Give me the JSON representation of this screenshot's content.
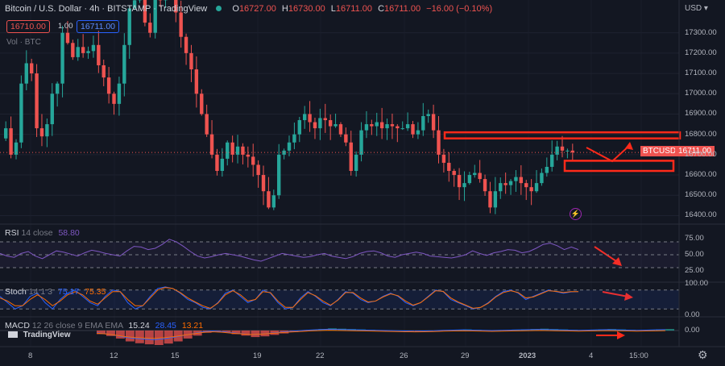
{
  "header": {
    "symbol": "Bitcoin / U.S. Dollar · 4h · BITSTAMP · TradingView",
    "o_label": "O",
    "o_value": "16727.00",
    "h_label": "H",
    "h_value": "16730.00",
    "l_label": "L",
    "l_value": "16711.00",
    "c_label": "C",
    "c_value": "16711.00",
    "change": "−16.00 (−0.10%)",
    "sell_price": "16710.00",
    "spread": "1.00",
    "buy_price": "16711.00",
    "vol_label": "Vol · BTC",
    "currency": "USD"
  },
  "last_price_tag": {
    "symbol": "BTCUSD",
    "price": "16711.00"
  },
  "colors": {
    "up": "#26a69a",
    "down": "#ef5350",
    "annotation": "#ff2a1a",
    "rsi": "#7e57c2",
    "stoch_k": "#2962ff",
    "stoch_d": "#ff6d00"
  },
  "rsi": {
    "label": "RSI",
    "params": "14 close",
    "value": "58.80"
  },
  "stoch": {
    "label": "Stoch",
    "params": "14 1 3",
    "k_value": "75.17",
    "d_value": "75.35"
  },
  "macd": {
    "label": "MACD",
    "params": "12 26 close 9 EMA EMA",
    "v1": "15.24",
    "v2": "28.45",
    "v3": "13.21"
  },
  "watermark": "TradingView",
  "chart_data": {
    "type": "candlestick",
    "title": "Bitcoin / U.S. Dollar · 4h · BITSTAMP",
    "price_axis": {
      "ticks": [
        17300,
        17200,
        17100,
        17000,
        16900,
        16800,
        16700,
        16600,
        16500,
        16400
      ],
      "ylim": [
        16370,
        17390
      ]
    },
    "x_ticks": [
      "8",
      "12",
      "15",
      "19",
      "22",
      "26",
      "29",
      "2023",
      "4",
      "15:00"
    ],
    "rsi_axis": [
      "75.00",
      "50.00",
      "25.00"
    ],
    "stoch_axis": [
      "100.00",
      "0.00"
    ],
    "macd_axis": [
      "0.00"
    ],
    "annotations": {
      "resistance_zone": [
        16780,
        16810
      ],
      "support_zone": [
        16620,
        16670
      ]
    },
    "price_path": [
      16780,
      16830,
      16700,
      16760,
      17050,
      17150,
      17100,
      16830,
      16790,
      16850,
      17000,
      17050,
      17300,
      17250,
      17180,
      17230,
      17200,
      17210,
      17240,
      17140,
      17080,
      17000,
      16950,
      17050,
      17240,
      17420,
      17460,
      17500,
      17350,
      17300,
      17500,
      17460,
      17550,
      17600,
      17400,
      17280,
      17200,
      17120,
      17000,
      16900,
      16800,
      16700,
      16620,
      16680,
      16760,
      16700,
      16740,
      16700,
      16690,
      16650,
      16600,
      16520,
      16440,
      16500,
      16700,
      16720,
      16760,
      16800,
      16870,
      16900,
      16860,
      16830,
      16880,
      16870,
      16840,
      16850,
      16800,
      16760,
      16620,
      16700,
      16820,
      16850,
      16840,
      16860,
      16830,
      16850,
      16840,
      16830,
      16830,
      16850,
      16800,
      16820,
      16890,
      16900,
      16820,
      16700,
      16660,
      16620,
      16600,
      16540,
      16560,
      16600,
      16610,
      16580,
      16520,
      16440,
      16520,
      16560,
      16550,
      16570,
      16590,
      16560,
      16540,
      16520,
      16560,
      16610,
      16640,
      16700,
      16740,
      16720,
      16720,
      16711
    ],
    "rsi_path": [
      52,
      48,
      46,
      52,
      55,
      48,
      44,
      50,
      56,
      54,
      51,
      48,
      53,
      57,
      55,
      52,
      50,
      48,
      56,
      63,
      62,
      58,
      60,
      66,
      74,
      70,
      63,
      55,
      48,
      45,
      47,
      50,
      52,
      50,
      48,
      45,
      42,
      40,
      44,
      48,
      52,
      50,
      48,
      46,
      47,
      50,
      52,
      48,
      46,
      44,
      47,
      52,
      55,
      56,
      53,
      48,
      46,
      50,
      52,
      54,
      52,
      48,
      47,
      46,
      45,
      47,
      50,
      56,
      52,
      49,
      53,
      55,
      58,
      57,
      53,
      55,
      60,
      66,
      68,
      64,
      58,
      62,
      58
    ],
    "stoch_k_path": [
      60,
      40,
      20,
      30,
      60,
      70,
      40,
      20,
      50,
      70,
      80,
      60,
      40,
      30,
      60,
      80,
      75,
      40,
      20,
      30,
      60,
      85,
      90,
      85,
      70,
      50,
      40,
      25,
      20,
      40,
      70,
      80,
      60,
      40,
      50,
      80,
      70,
      40,
      20,
      25,
      55,
      75,
      60,
      40,
      30,
      50,
      75,
      70,
      50,
      40,
      45,
      60,
      70,
      60,
      40,
      30,
      40,
      60,
      80,
      75,
      50,
      40,
      30,
      20,
      25,
      40,
      60,
      75,
      80,
      70,
      50,
      60,
      70,
      80,
      75,
      70,
      74,
      75
    ],
    "stoch_d_path": [
      55,
      45,
      30,
      30,
      50,
      65,
      50,
      30,
      45,
      65,
      75,
      65,
      45,
      35,
      55,
      75,
      75,
      50,
      30,
      30,
      55,
      80,
      88,
      85,
      72,
      55,
      42,
      30,
      22,
      38,
      65,
      78,
      65,
      45,
      50,
      75,
      72,
      45,
      25,
      25,
      50,
      72,
      62,
      45,
      32,
      48,
      72,
      72,
      55,
      42,
      45,
      58,
      68,
      62,
      45,
      32,
      40,
      58,
      78,
      76,
      55,
      42,
      32,
      22,
      25,
      38,
      58,
      72,
      78,
      72,
      55,
      58,
      68,
      78,
      76,
      72,
      75,
      75
    ],
    "macd_hist_path": [
      -10,
      -15,
      -22,
      -30,
      -35,
      -38,
      -40,
      -36,
      -30,
      -22,
      -14,
      -6,
      -2,
      -5,
      -10,
      -14,
      -18,
      -16,
      -12,
      -8,
      -4,
      -1,
      2,
      4,
      6,
      5,
      4,
      3,
      2,
      1,
      0,
      -1,
      -2,
      -3,
      -2,
      -1,
      1,
      2,
      3,
      2,
      1,
      0,
      1,
      2,
      3,
      4,
      5,
      4,
      3,
      2,
      1,
      2,
      3,
      4,
      3,
      2,
      1,
      2,
      3,
      4
    ]
  }
}
